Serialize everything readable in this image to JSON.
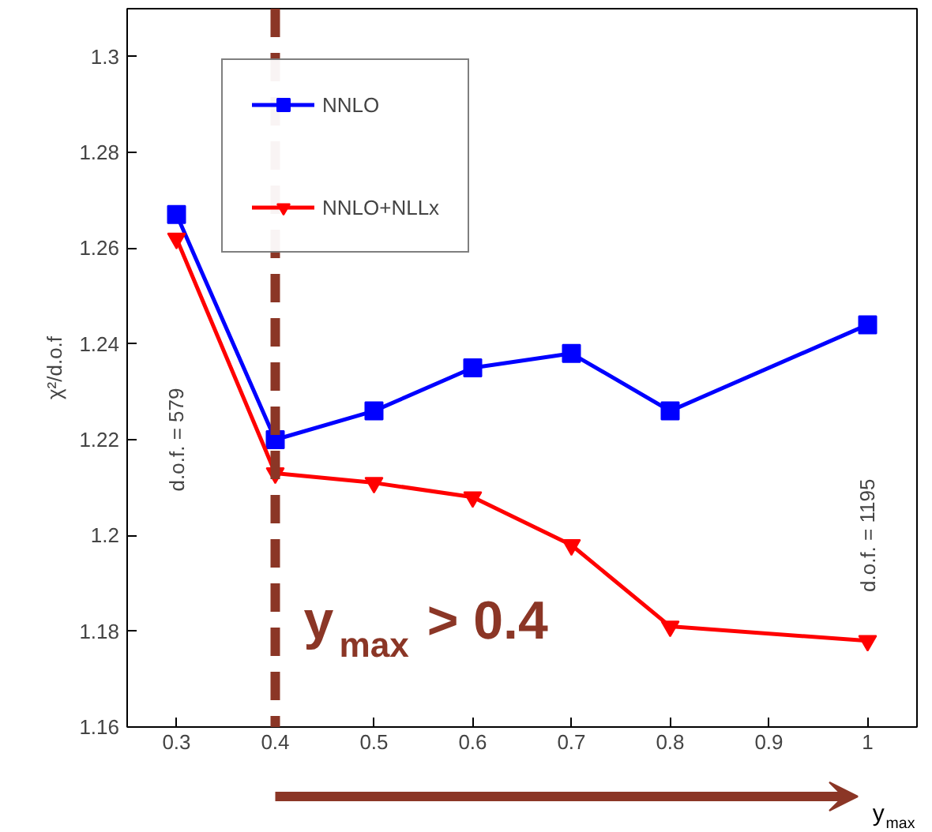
{
  "chart_data": {
    "type": "line",
    "xlabel": "y$_{max}$",
    "ylabel": "χ²/d.o.f",
    "x": [
      0.3,
      0.4,
      0.5,
      0.6,
      0.7,
      0.8,
      1.0
    ],
    "series": [
      {
        "name": "NNLO",
        "color": "#0000ff",
        "marker": "square",
        "values": [
          1.267,
          1.22,
          1.226,
          1.235,
          1.238,
          1.226,
          1.244
        ]
      },
      {
        "name": "NNLO+NLLx",
        "color": "#ff0000",
        "marker": "triangle",
        "values": [
          1.262,
          1.213,
          1.211,
          1.208,
          1.198,
          1.181,
          1.178
        ]
      }
    ],
    "xlim": [
      0.25,
      1.05
    ],
    "ylim": [
      1.16,
      1.31
    ],
    "xticks": [
      0.3,
      0.4,
      0.5,
      0.6,
      0.7,
      0.8,
      0.9,
      1
    ],
    "yticks": [
      1.16,
      1.18,
      {
        "value": 1.2,
        "label": "1.2"
      },
      1.22,
      1.24,
      1.26,
      1.28,
      {
        "value": 1.3,
        "label": "1.3"
      }
    ],
    "ref_lines": [
      {
        "axis": "x",
        "value": 0.4,
        "label": "y$_{max}$ > 0.4",
        "color": "#8b3626",
        "line_style": "dashed"
      }
    ],
    "annotations": [
      "d.o.f. = 579",
      "d.o.f. = 1195"
    ],
    "grid": false,
    "legend": "top left",
    "line_style": "solid"
  }
}
